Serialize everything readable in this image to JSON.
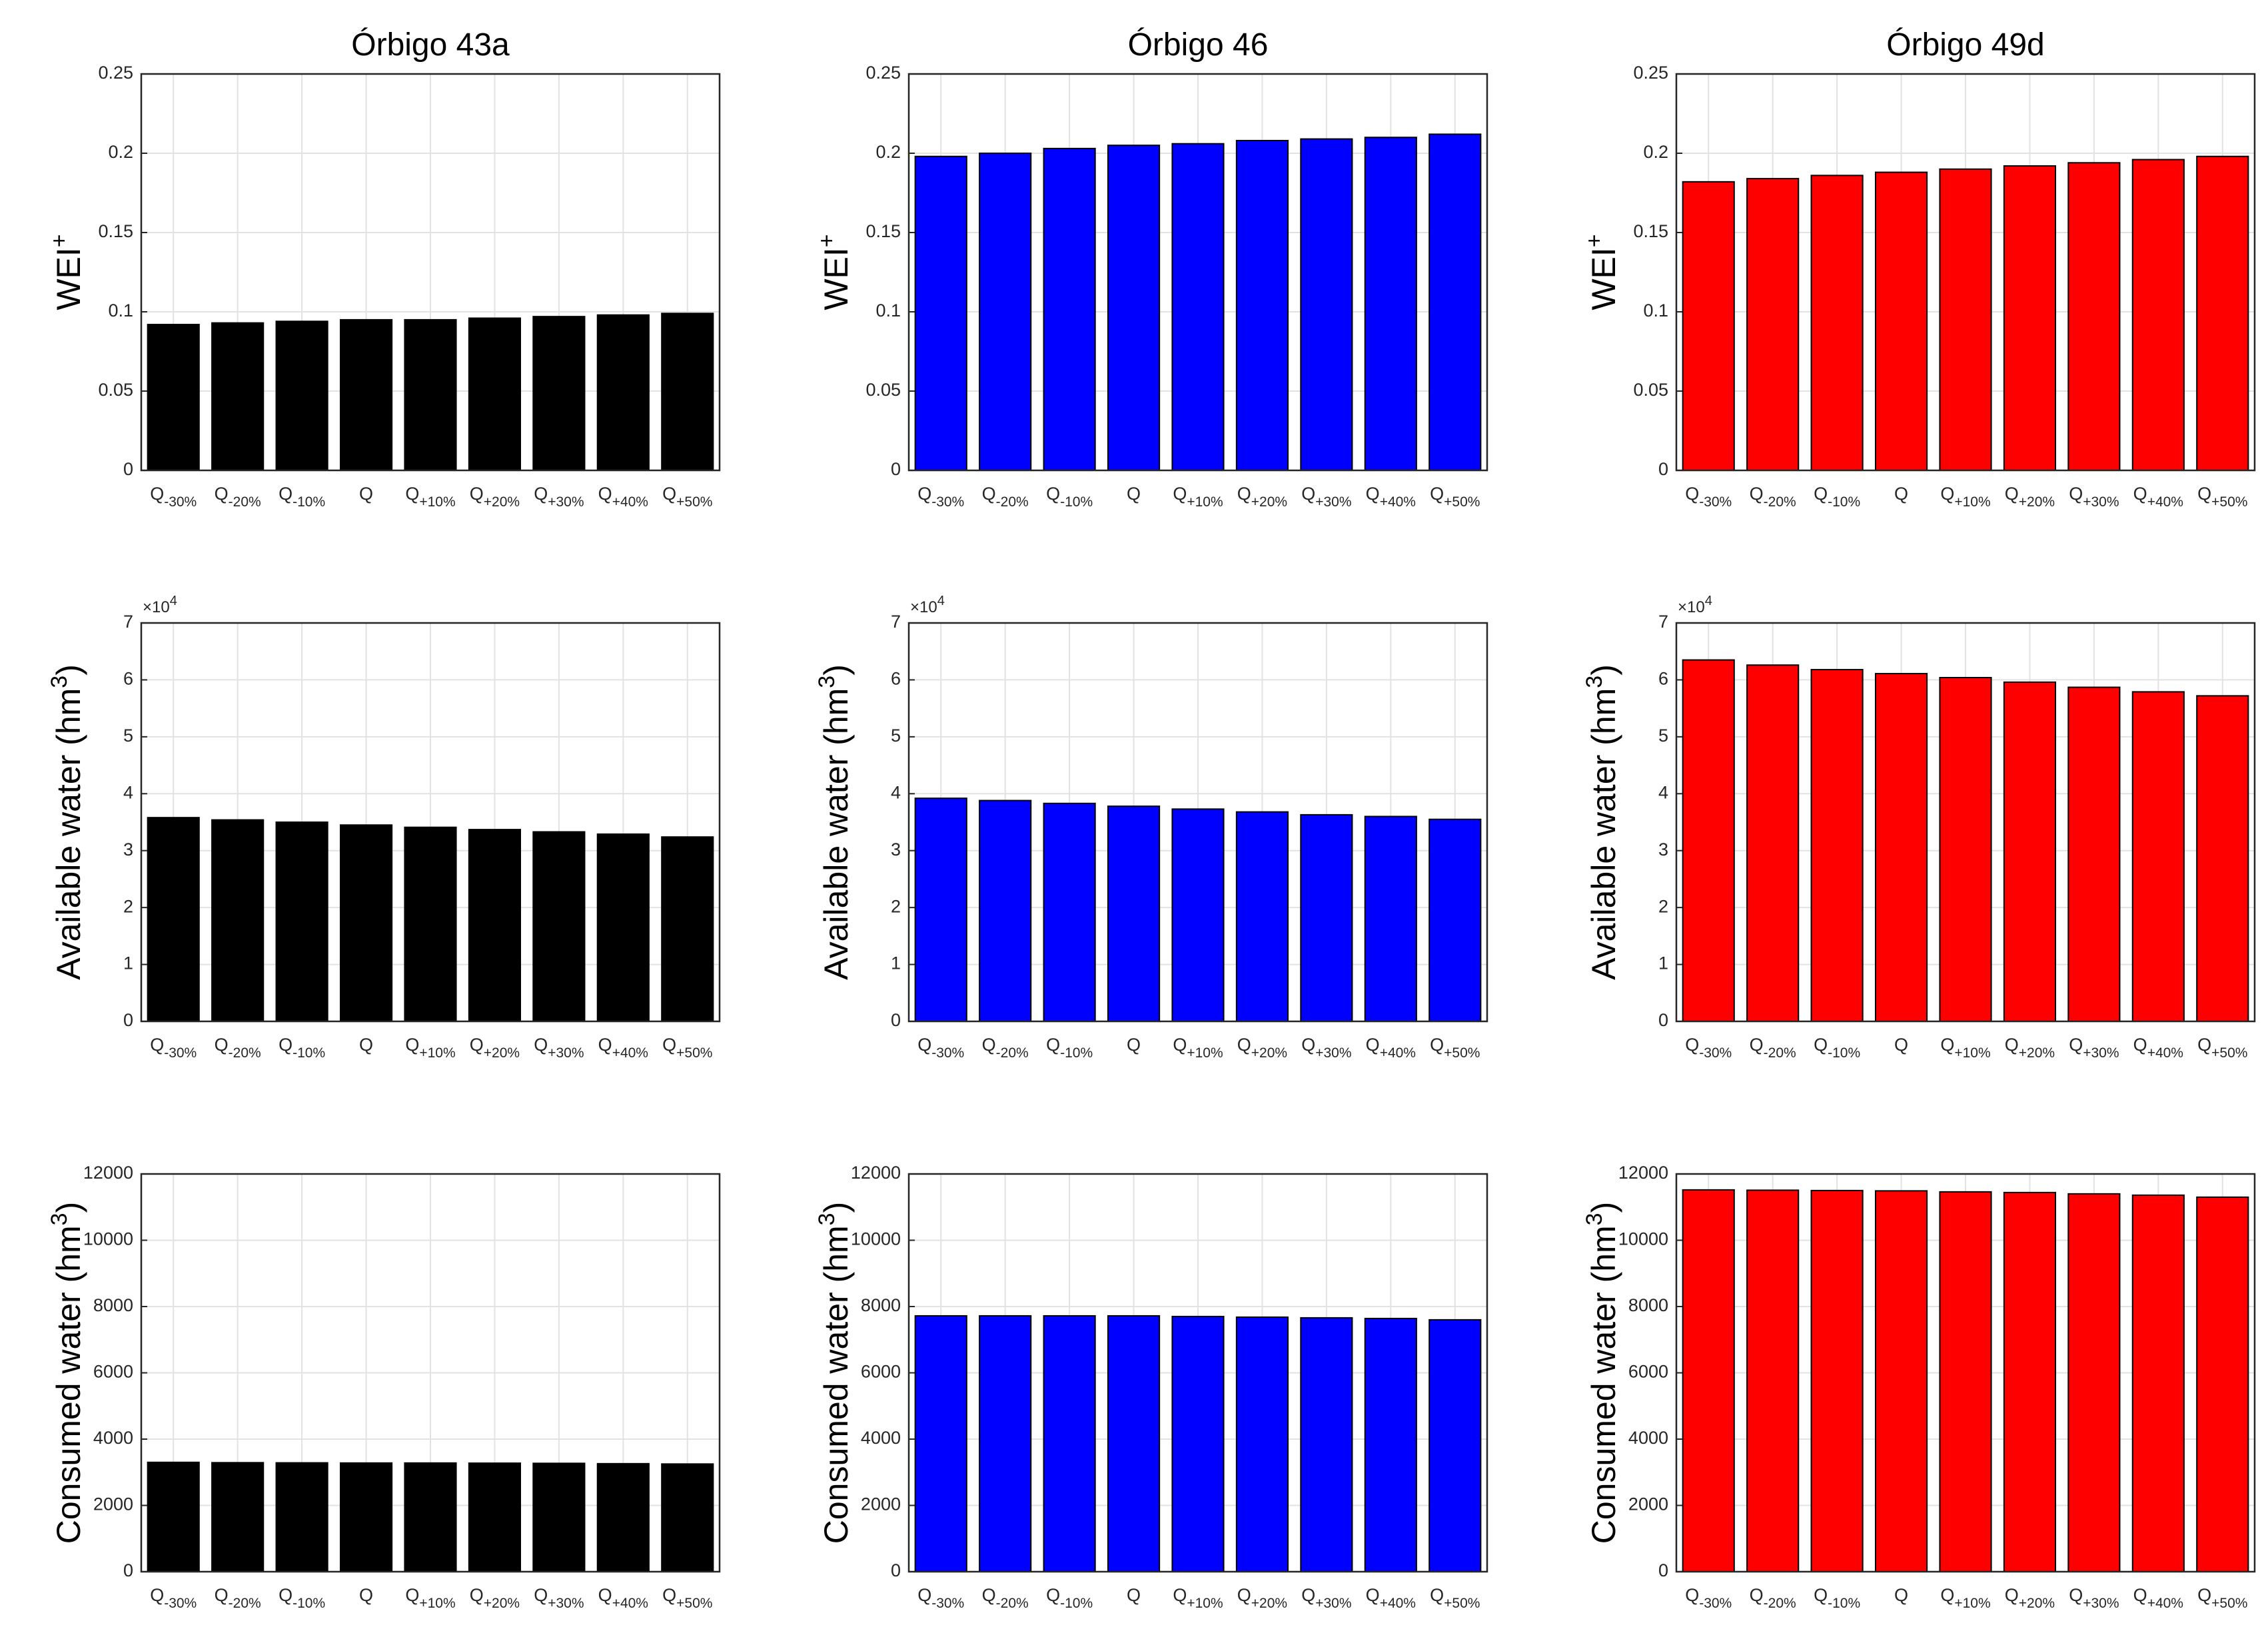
{
  "columns": [
    {
      "title": "Órbigo 43a",
      "color": "#000000"
    },
    {
      "title": "Órbigo 46",
      "color": "#0000ff"
    },
    {
      "title": "Órbigo 49d",
      "color": "#ff0000"
    }
  ],
  "scenario_labels": [
    {
      "base": "Q",
      "sub": "-30%"
    },
    {
      "base": "Q",
      "sub": "-20%"
    },
    {
      "base": "Q",
      "sub": "-10%"
    },
    {
      "base": "Q",
      "sub": ""
    },
    {
      "base": "Q",
      "sub": "+10%"
    },
    {
      "base": "Q",
      "sub": "+20%"
    },
    {
      "base": "Q",
      "sub": "+30%"
    },
    {
      "base": "Q",
      "sub": "+40%"
    },
    {
      "base": "Q",
      "sub": "+50%"
    }
  ],
  "chart_data": [
    {
      "type": "bar",
      "title": "Órbigo 43a",
      "ylabel": "WEI",
      "ylabel_sup": "+",
      "ylim": [
        0,
        0.25
      ],
      "yticks": [
        "0",
        "0.05",
        "0.1",
        "0.15",
        "0.2",
        "0.25"
      ],
      "grid": true,
      "color": "#000000",
      "categories": [
        "Q-30%",
        "Q-20%",
        "Q-10%",
        "Q",
        "Q+10%",
        "Q+20%",
        "Q+30%",
        "Q+40%",
        "Q+50%"
      ],
      "values": [
        0.092,
        0.093,
        0.094,
        0.095,
        0.095,
        0.096,
        0.097,
        0.098,
        0.099
      ]
    },
    {
      "type": "bar",
      "title": "Órbigo 46",
      "ylabel": "WEI",
      "ylabel_sup": "+",
      "ylim": [
        0,
        0.25
      ],
      "yticks": [
        "0",
        "0.05",
        "0.1",
        "0.15",
        "0.2",
        "0.25"
      ],
      "grid": true,
      "color": "#0000ff",
      "categories": [
        "Q-30%",
        "Q-20%",
        "Q-10%",
        "Q",
        "Q+10%",
        "Q+20%",
        "Q+30%",
        "Q+40%",
        "Q+50%"
      ],
      "values": [
        0.198,
        0.2,
        0.203,
        0.205,
        0.206,
        0.208,
        0.209,
        0.21,
        0.212
      ]
    },
    {
      "type": "bar",
      "title": "Órbigo 49d",
      "ylabel": "WEI",
      "ylabel_sup": "+",
      "ylim": [
        0,
        0.25
      ],
      "yticks": [
        "0",
        "0.05",
        "0.1",
        "0.15",
        "0.2",
        "0.25"
      ],
      "grid": true,
      "color": "#ff0000",
      "categories": [
        "Q-30%",
        "Q-20%",
        "Q-10%",
        "Q",
        "Q+10%",
        "Q+20%",
        "Q+30%",
        "Q+40%",
        "Q+50%"
      ],
      "values": [
        0.182,
        0.184,
        0.186,
        0.188,
        0.19,
        0.192,
        0.194,
        0.196,
        0.198
      ]
    },
    {
      "type": "bar",
      "title": "",
      "ylabel": "Available water (hm",
      "ylabel_sup": "3",
      "ylabel_end": ")",
      "ylim": [
        0,
        7
      ],
      "yticks": [
        "0",
        "1",
        "2",
        "3",
        "4",
        "5",
        "6",
        "7"
      ],
      "multiplier": "×10",
      "multiplier_sup": "4",
      "grid": true,
      "color": "#000000",
      "categories": [
        "Q-30%",
        "Q-20%",
        "Q-10%",
        "Q",
        "Q+10%",
        "Q+20%",
        "Q+30%",
        "Q+40%",
        "Q+50%"
      ],
      "values": [
        3.58,
        3.54,
        3.5,
        3.45,
        3.41,
        3.37,
        3.33,
        3.29,
        3.24
      ]
    },
    {
      "type": "bar",
      "title": "",
      "ylabel": "Available water (hm",
      "ylabel_sup": "3",
      "ylabel_end": ")",
      "ylim": [
        0,
        7
      ],
      "yticks": [
        "0",
        "1",
        "2",
        "3",
        "4",
        "5",
        "6",
        "7"
      ],
      "multiplier": "×10",
      "multiplier_sup": "4",
      "grid": true,
      "color": "#0000ff",
      "categories": [
        "Q-30%",
        "Q-20%",
        "Q-10%",
        "Q",
        "Q+10%",
        "Q+20%",
        "Q+30%",
        "Q+40%",
        "Q+50%"
      ],
      "values": [
        3.92,
        3.88,
        3.83,
        3.78,
        3.73,
        3.68,
        3.63,
        3.6,
        3.55
      ]
    },
    {
      "type": "bar",
      "title": "",
      "ylabel": "Available water (hm",
      "ylabel_sup": "3",
      "ylabel_end": ")",
      "ylim": [
        0,
        7
      ],
      "yticks": [
        "0",
        "1",
        "2",
        "3",
        "4",
        "5",
        "6",
        "7"
      ],
      "multiplier": "×10",
      "multiplier_sup": "4",
      "grid": true,
      "color": "#ff0000",
      "categories": [
        "Q-30%",
        "Q-20%",
        "Q-10%",
        "Q",
        "Q+10%",
        "Q+20%",
        "Q+30%",
        "Q+40%",
        "Q+50%"
      ],
      "values": [
        6.35,
        6.26,
        6.18,
        6.11,
        6.04,
        5.96,
        5.87,
        5.79,
        5.72
      ]
    },
    {
      "type": "bar",
      "title": "",
      "ylabel": "Consumed water (hm",
      "ylabel_sup": "3",
      "ylabel_end": ")",
      "ylim": [
        0,
        12000
      ],
      "yticks": [
        "0",
        "2000",
        "4000",
        "6000",
        "8000",
        "10000",
        "12000"
      ],
      "grid": true,
      "color": "#000000",
      "categories": [
        "Q-30%",
        "Q-20%",
        "Q-10%",
        "Q",
        "Q+10%",
        "Q+20%",
        "Q+30%",
        "Q+40%",
        "Q+50%"
      ],
      "values": [
        3300,
        3290,
        3285,
        3280,
        3280,
        3275,
        3270,
        3260,
        3250
      ]
    },
    {
      "type": "bar",
      "title": "",
      "ylabel": "Consumed water (hm",
      "ylabel_sup": "3",
      "ylabel_end": ")",
      "ylim": [
        0,
        12000
      ],
      "yticks": [
        "0",
        "2000",
        "4000",
        "6000",
        "8000",
        "10000",
        "12000"
      ],
      "grid": true,
      "color": "#0000ff",
      "categories": [
        "Q-30%",
        "Q-20%",
        "Q-10%",
        "Q",
        "Q+10%",
        "Q+20%",
        "Q+30%",
        "Q+40%",
        "Q+50%"
      ],
      "values": [
        7720,
        7720,
        7720,
        7720,
        7700,
        7680,
        7660,
        7640,
        7600
      ]
    },
    {
      "type": "bar",
      "title": "",
      "ylabel": "Consumed water (hm",
      "ylabel_sup": "3",
      "ylabel_end": ")",
      "ylim": [
        0,
        12000
      ],
      "yticks": [
        "0",
        "2000",
        "4000",
        "6000",
        "8000",
        "10000",
        "12000"
      ],
      "grid": true,
      "color": "#ff0000",
      "categories": [
        "Q-30%",
        "Q-20%",
        "Q-10%",
        "Q",
        "Q+10%",
        "Q+20%",
        "Q+30%",
        "Q+40%",
        "Q+50%"
      ],
      "values": [
        11520,
        11510,
        11500,
        11490,
        11460,
        11440,
        11400,
        11360,
        11300
      ]
    }
  ]
}
